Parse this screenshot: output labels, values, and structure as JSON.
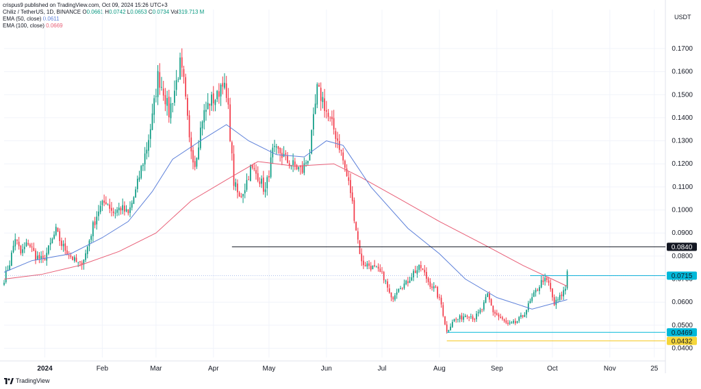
{
  "header": {
    "published": "crispus9 published on TradingView.com, Oct 09, 2024 15:26 UTC+3"
  },
  "legend": {
    "symbol": "Chiliz / TetherUS, 1D, BINANCE",
    "ohlc": [
      {
        "k": "O",
        "v": "0.0661"
      },
      {
        "k": "H",
        "v": "0.0742"
      },
      {
        "k": "L",
        "v": "0.0653"
      },
      {
        "k": "C",
        "v": "0.0734"
      }
    ],
    "vol": {
      "k": "Vol",
      "v": "319.713 M"
    },
    "ema50": {
      "label": "EMA (50, close)",
      "value": "0.0611",
      "color": "#5b7fd9"
    },
    "ema100": {
      "label": "EMA (100, close)",
      "value": "0.0669",
      "color": "#e85d75"
    }
  },
  "brand": "TradingView",
  "colors": {
    "up": "#089981",
    "down": "#f23645",
    "grid": "#f0f3fa",
    "axis_text": "#131722"
  },
  "chart_data": {
    "type": "candlestick",
    "unit": "USDT",
    "ylim": [
      0.036,
      0.178
    ],
    "yticks": [
      0.04,
      0.05,
      0.06,
      0.07,
      0.08,
      0.09,
      0.1,
      0.11,
      0.12,
      0.13,
      0.14,
      0.15,
      0.16,
      0.17
    ],
    "ytick_labels": [
      "0.0400",
      "0.0500",
      "0.0600",
      "0.0700",
      "0.0800",
      "0.0900",
      "0.1000",
      "0.1100",
      "0.1200",
      "0.1300",
      "0.1400",
      "0.1500",
      "0.1600",
      "0.1700"
    ],
    "xticks": [
      {
        "label": "2024",
        "date": "2024-01-01",
        "bold": true
      },
      {
        "label": "Feb",
        "date": "2024-02-01"
      },
      {
        "label": "Mar",
        "date": "2024-03-01"
      },
      {
        "label": "Apr",
        "date": "2024-04-01"
      },
      {
        "label": "May",
        "date": "2024-05-01"
      },
      {
        "label": "Jun",
        "date": "2024-06-01"
      },
      {
        "label": "Jul",
        "date": "2024-07-01"
      },
      {
        "label": "Aug",
        "date": "2024-08-01"
      },
      {
        "label": "Sep",
        "date": "2024-09-01"
      },
      {
        "label": "Oct",
        "date": "2024-10-01"
      },
      {
        "label": "Nov",
        "date": "2024-11-01"
      },
      {
        "label": "25",
        "date": "2024-11-25"
      }
    ],
    "x_range": [
      "2023-12-10",
      "2024-12-01"
    ],
    "price_path": [
      [
        "2023-12-10",
        0.07
      ],
      [
        "2023-12-13",
        0.077
      ],
      [
        "2023-12-16",
        0.088
      ],
      [
        "2023-12-19",
        0.081
      ],
      [
        "2023-12-23",
        0.086
      ],
      [
        "2023-12-27",
        0.08
      ],
      [
        "2023-12-31",
        0.078
      ],
      [
        "2024-01-03",
        0.083
      ],
      [
        "2024-01-07",
        0.091
      ],
      [
        "2024-01-10",
        0.085
      ],
      [
        "2024-01-14",
        0.081
      ],
      [
        "2024-01-17",
        0.078
      ],
      [
        "2024-01-20",
        0.076
      ],
      [
        "2024-01-23",
        0.081
      ],
      [
        "2024-01-27",
        0.093
      ],
      [
        "2024-01-30",
        0.1
      ],
      [
        "2024-02-03",
        0.104
      ],
      [
        "2024-02-07",
        0.099
      ],
      [
        "2024-02-11",
        0.101
      ],
      [
        "2024-02-15",
        0.098
      ],
      [
        "2024-02-19",
        0.108
      ],
      [
        "2024-02-22",
        0.118
      ],
      [
        "2024-02-25",
        0.127
      ],
      [
        "2024-02-28",
        0.14
      ],
      [
        "2024-03-02",
        0.158
      ],
      [
        "2024-03-05",
        0.152
      ],
      [
        "2024-03-08",
        0.142
      ],
      [
        "2024-03-11",
        0.152
      ],
      [
        "2024-03-14",
        0.163
      ],
      [
        "2024-03-16",
        0.155
      ],
      [
        "2024-03-19",
        0.13
      ],
      [
        "2024-03-22",
        0.12
      ],
      [
        "2024-03-26",
        0.14
      ],
      [
        "2024-03-30",
        0.147
      ],
      [
        "2024-04-03",
        0.149
      ],
      [
        "2024-04-06",
        0.157
      ],
      [
        "2024-04-09",
        0.143
      ],
      [
        "2024-04-12",
        0.112
      ],
      [
        "2024-04-15",
        0.105
      ],
      [
        "2024-04-18",
        0.11
      ],
      [
        "2024-04-21",
        0.118
      ],
      [
        "2024-04-25",
        0.115
      ],
      [
        "2024-04-29",
        0.108
      ],
      [
        "2024-05-03",
        0.125
      ],
      [
        "2024-05-07",
        0.125
      ],
      [
        "2024-05-11",
        0.121
      ],
      [
        "2024-05-15",
        0.119
      ],
      [
        "2024-05-19",
        0.117
      ],
      [
        "2024-05-23",
        0.125
      ],
      [
        "2024-05-27",
        0.152
      ],
      [
        "2024-05-30",
        0.148
      ],
      [
        "2024-06-02",
        0.14
      ],
      [
        "2024-06-05",
        0.135
      ],
      [
        "2024-06-08",
        0.128
      ],
      [
        "2024-06-11",
        0.118
      ],
      [
        "2024-06-14",
        0.108
      ],
      [
        "2024-06-17",
        0.092
      ],
      [
        "2024-06-20",
        0.077
      ],
      [
        "2024-06-24",
        0.076
      ],
      [
        "2024-06-28",
        0.074
      ],
      [
        "2024-07-02",
        0.071
      ],
      [
        "2024-07-06",
        0.061
      ],
      [
        "2024-07-10",
        0.067
      ],
      [
        "2024-07-14",
        0.068
      ],
      [
        "2024-07-18",
        0.073
      ],
      [
        "2024-07-22",
        0.075
      ],
      [
        "2024-07-26",
        0.069
      ],
      [
        "2024-07-30",
        0.065
      ],
      [
        "2024-08-02",
        0.059
      ],
      [
        "2024-08-05",
        0.047
      ],
      [
        "2024-08-08",
        0.052
      ],
      [
        "2024-08-12",
        0.053
      ],
      [
        "2024-08-16",
        0.055
      ],
      [
        "2024-08-20",
        0.053
      ],
      [
        "2024-08-24",
        0.057
      ],
      [
        "2024-08-27",
        0.063
      ],
      [
        "2024-08-30",
        0.056
      ],
      [
        "2024-09-03",
        0.053
      ],
      [
        "2024-09-07",
        0.05
      ],
      [
        "2024-09-11",
        0.051
      ],
      [
        "2024-09-15",
        0.054
      ],
      [
        "2024-09-19",
        0.06
      ],
      [
        "2024-09-23",
        0.066
      ],
      [
        "2024-09-26",
        0.07
      ],
      [
        "2024-09-29",
        0.068
      ],
      [
        "2024-10-02",
        0.059
      ],
      [
        "2024-10-05",
        0.062
      ],
      [
        "2024-10-08",
        0.066
      ],
      [
        "2024-10-09",
        0.0734
      ]
    ],
    "ema50": [
      [
        "2023-12-10",
        0.073
      ],
      [
        "2023-12-25",
        0.078
      ],
      [
        "2024-01-15",
        0.081
      ],
      [
        "2024-02-01",
        0.088
      ],
      [
        "2024-02-15",
        0.095
      ],
      [
        "2024-02-28",
        0.108
      ],
      [
        "2024-03-10",
        0.122
      ],
      [
        "2024-03-25",
        0.13
      ],
      [
        "2024-04-08",
        0.137
      ],
      [
        "2024-04-20",
        0.13
      ],
      [
        "2024-05-05",
        0.124
      ],
      [
        "2024-05-20",
        0.123
      ],
      [
        "2024-06-01",
        0.13
      ],
      [
        "2024-06-10",
        0.128
      ],
      [
        "2024-06-25",
        0.11
      ],
      [
        "2024-07-15",
        0.092
      ],
      [
        "2024-08-01",
        0.081
      ],
      [
        "2024-08-15",
        0.07
      ],
      [
        "2024-09-01",
        0.062
      ],
      [
        "2024-09-20",
        0.057
      ],
      [
        "2024-10-09",
        0.0611
      ]
    ],
    "ema100": [
      [
        "2023-12-10",
        0.07
      ],
      [
        "2023-12-30",
        0.072
      ],
      [
        "2024-01-20",
        0.076
      ],
      [
        "2024-02-10",
        0.082
      ],
      [
        "2024-03-01",
        0.09
      ],
      [
        "2024-03-20",
        0.104
      ],
      [
        "2024-04-10",
        0.114
      ],
      [
        "2024-04-25",
        0.121
      ],
      [
        "2024-05-15",
        0.119
      ],
      [
        "2024-06-05",
        0.12
      ],
      [
        "2024-06-20",
        0.114
      ],
      [
        "2024-07-10",
        0.105
      ],
      [
        "2024-08-01",
        0.095
      ],
      [
        "2024-08-25",
        0.085
      ],
      [
        "2024-09-15",
        0.076
      ],
      [
        "2024-10-09",
        0.0669
      ]
    ],
    "hlines": [
      {
        "value": 0.084,
        "label": "0.0840",
        "from": "2024-04-11",
        "color": "#131722",
        "label_bg": "#131722",
        "label_fg": "#ffffff"
      },
      {
        "value": 0.0715,
        "label": "0.0715",
        "from": "2024-09-19",
        "color": "#00b8d9",
        "label_bg": "#00b8d9",
        "label_fg": "#131722"
      },
      {
        "value": 0.0469,
        "label": "0.0469",
        "from": "2024-08-05",
        "color": "#00b8d9",
        "label_bg": "#00b8d9",
        "label_fg": "#131722"
      },
      {
        "value": 0.0432,
        "label": "0.0432",
        "from": "2024-08-05",
        "color": "#f5c518",
        "label_bg": "#f5d63a",
        "label_fg": "#131722"
      }
    ],
    "current_price": 0.0734
  }
}
